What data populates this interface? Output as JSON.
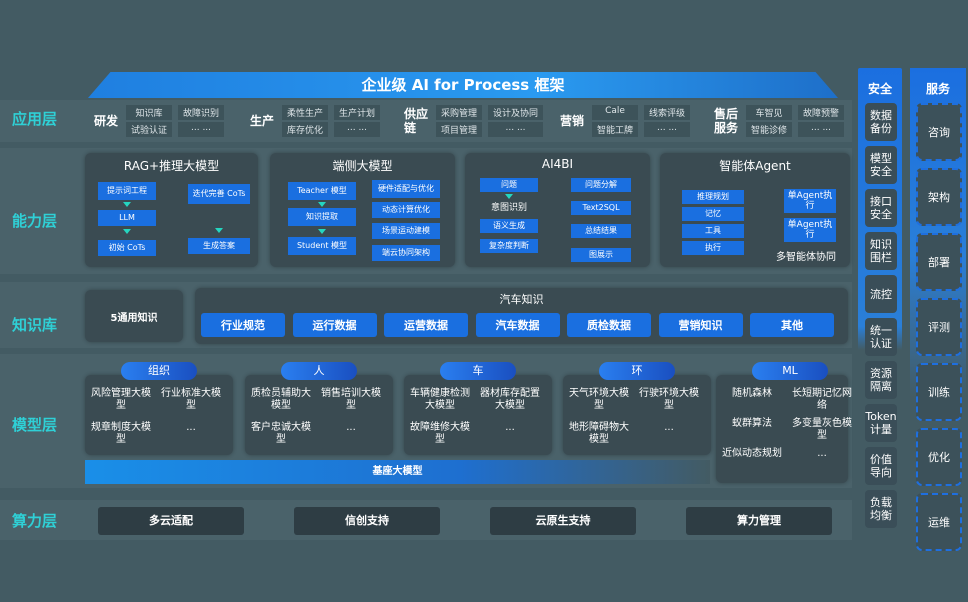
{
  "title": "企业级 AI for Process 框架",
  "layers": {
    "app": "应用层",
    "capability": "能力层",
    "knowledge": "知识库",
    "model": "模型层",
    "compute": "算力层"
  },
  "app_groups": [
    {
      "name": "研发",
      "items": [
        "知识库",
        "故障识别",
        "试验认证",
        "... ..."
      ]
    },
    {
      "name": "生产",
      "items": [
        "柔性生产",
        "生产计划",
        "库存优化",
        "... ..."
      ]
    },
    {
      "name": "供应链",
      "items": [
        "采购管理",
        "设计及协同",
        "项目管理",
        "... ..."
      ]
    },
    {
      "name": "营销",
      "items": [
        "Cale",
        "线索评级",
        "智能工牌",
        "... ..."
      ]
    },
    {
      "name": "售后服务",
      "items": [
        "车智见",
        "故障预警",
        "智能诊修",
        "... ..."
      ]
    }
  ],
  "capability": {
    "rag": {
      "title": "RAG+推理大模型",
      "items": [
        "提示词工程",
        "LLM",
        "初始 CoTs",
        "迭代完善 CoTs",
        "生成答案"
      ]
    },
    "edge": {
      "title": "端侧大模型",
      "left": [
        "Teacher 模型",
        "知识提取",
        "Student 模型"
      ],
      "right": [
        "硬件适配与优化",
        "动态计算优化",
        "场景运动建模",
        "端云协同架构"
      ]
    },
    "ai4bi": {
      "title": "AI4BI",
      "left": [
        "问题",
        "意图识别",
        "语义生成",
        "复杂度判断"
      ],
      "right": [
        "问题分解",
        "Text2SQL",
        "总结结果",
        "图展示"
      ]
    },
    "agent": {
      "title": "智能体Agent",
      "left": [
        "推理规划",
        "记忆",
        "工具",
        "执行"
      ],
      "right": [
        "单Agent执行",
        "单Agent执行"
      ],
      "caption": "多智能体协同"
    }
  },
  "knowledge": {
    "general": "5通用知识",
    "auto_title": "汽车知识",
    "items": [
      "行业规范",
      "运行数据",
      "运营数据",
      "汽车数据",
      "质检数据",
      "营销知识",
      "其他"
    ]
  },
  "models": [
    {
      "tag": "组织",
      "items": [
        "风险管理大模型",
        "行业标准大模型",
        "规章制度大模型",
        "..."
      ]
    },
    {
      "tag": "人",
      "items": [
        "质检员辅助大模型",
        "销售培训大模型",
        "客户忠诚大模型",
        "..."
      ]
    },
    {
      "tag": "车",
      "items": [
        "车辆健康检测大模型",
        "器材库存配置大模型",
        "故障维修大模型",
        "..."
      ]
    },
    {
      "tag": "环",
      "items": [
        "天气环境大模型",
        "行驶环境大模型",
        "地形障碍物大模型",
        "..."
      ]
    },
    {
      "tag": "ML",
      "items": [
        "随机森林",
        "长短期记忆网络",
        "蚁群算法",
        "多变量灰色模型",
        "近似动态规划",
        "..."
      ]
    }
  ],
  "base_model": "基座大模型",
  "compute": [
    "多云适配",
    "信创支持",
    "云原生支持",
    "算力管理"
  ],
  "security": {
    "title": "安全",
    "items": [
      "数据备份",
      "模型安全",
      "接口安全",
      "知识围栏",
      "流控",
      "统一认证",
      "资源隔离",
      "Token计量",
      "价值导向",
      "负载均衡"
    ]
  },
  "service": {
    "title": "服务",
    "items": [
      "咨询",
      "架构",
      "部署",
      "评测",
      "训练",
      "优化",
      "运维"
    ]
  },
  "colors": {
    "accent": "#1a6fe0",
    "label": "#2fd0d6",
    "background": "#435b63"
  }
}
